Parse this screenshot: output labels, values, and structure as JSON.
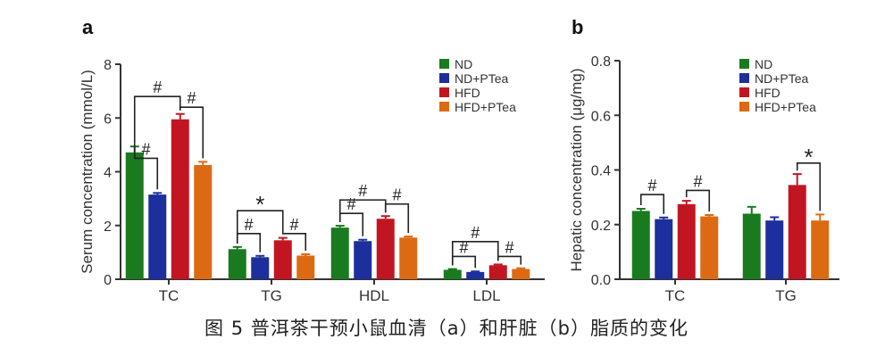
{
  "caption": "图 5  普洱茶干预小鼠血清（a）和肝脏（b）脂质的变化",
  "colors": {
    "ND": "#1a7a1f",
    "ND+PTea": "#1c2f9c",
    "HFD": "#c11622",
    "HFD+PTea": "#dc6a12"
  },
  "chart_data": [
    {
      "panel_label": "a",
      "type": "bar",
      "ylabel": "Serum concentration (mmol/L)",
      "ylim": [
        0,
        8
      ],
      "yticks": [
        "0",
        "2",
        "4",
        "6",
        "8"
      ],
      "categories": [
        "TC",
        "TG",
        "HDL",
        "LDL"
      ],
      "legend": [
        "ND",
        "ND+PTea",
        "HFD",
        "HFD+PTea"
      ],
      "series": [
        {
          "name": "ND",
          "values": [
            4.72,
            1.12,
            1.92,
            0.35
          ],
          "errors": [
            0.22,
            0.08,
            0.07,
            0.03
          ]
        },
        {
          "name": "ND+PTea",
          "values": [
            3.15,
            0.82,
            1.42,
            0.27
          ],
          "errors": [
            0.06,
            0.05,
            0.05,
            0.02
          ]
        },
        {
          "name": "HFD",
          "values": [
            5.95,
            1.45,
            2.25,
            0.52
          ],
          "errors": [
            0.2,
            0.09,
            0.1,
            0.03
          ]
        },
        {
          "name": "HFD+PTea",
          "values": [
            4.25,
            0.88,
            1.55,
            0.38
          ],
          "errors": [
            0.12,
            0.05,
            0.04,
            0.03
          ]
        }
      ],
      "annotations": [
        {
          "category": 0,
          "from": 0,
          "to": 1,
          "level": 4.5,
          "symbol": "#"
        },
        {
          "category": 0,
          "from": 0,
          "to": 2,
          "level": 6.8,
          "symbol": "#"
        },
        {
          "category": 0,
          "from": 2,
          "to": 3,
          "level": 6.4,
          "symbol": "#"
        },
        {
          "category": 1,
          "from": 0,
          "to": 1,
          "level": 1.7,
          "symbol": "#"
        },
        {
          "category": 1,
          "from": 0,
          "to": 2,
          "level": 2.55,
          "symbol": "*"
        },
        {
          "category": 1,
          "from": 2,
          "to": 3,
          "level": 1.7,
          "symbol": "#"
        },
        {
          "category": 2,
          "from": 0,
          "to": 1,
          "level": 2.45,
          "symbol": "#"
        },
        {
          "category": 2,
          "from": 0,
          "to": 2,
          "level": 2.95,
          "symbol": "#"
        },
        {
          "category": 2,
          "from": 2,
          "to": 3,
          "level": 2.8,
          "symbol": "#"
        },
        {
          "category": 3,
          "from": 0,
          "to": 1,
          "level": 0.85,
          "symbol": "#"
        },
        {
          "category": 3,
          "from": 0,
          "to": 2,
          "level": 1.4,
          "symbol": "#"
        },
        {
          "category": 3,
          "from": 2,
          "to": 3,
          "level": 0.85,
          "symbol": "#"
        }
      ]
    },
    {
      "panel_label": "b",
      "type": "bar",
      "ylabel": "Hepatic concentration (μg/mg)",
      "ylim": [
        0,
        0.8
      ],
      "yticks": [
        "0.0",
        "0.2",
        "0.4",
        "0.6",
        "0.8"
      ],
      "categories": [
        "TC",
        "TG"
      ],
      "legend": [
        "ND",
        "ND+PTea",
        "HFD",
        "HFD+PTea"
      ],
      "series": [
        {
          "name": "ND",
          "values": [
            0.25,
            0.24
          ],
          "errors": [
            0.008,
            0.025
          ]
        },
        {
          "name": "ND+PTea",
          "values": [
            0.22,
            0.215
          ],
          "errors": [
            0.006,
            0.012
          ]
        },
        {
          "name": "HFD",
          "values": [
            0.275,
            0.345
          ],
          "errors": [
            0.012,
            0.04
          ]
        },
        {
          "name": "HFD+PTea",
          "values": [
            0.23,
            0.215
          ],
          "errors": [
            0.005,
            0.022
          ]
        }
      ],
      "annotations": [
        {
          "category": 0,
          "from": 0,
          "to": 1,
          "level": 0.31,
          "symbol": "#"
        },
        {
          "category": 0,
          "from": 2,
          "to": 3,
          "level": 0.325,
          "symbol": "#"
        },
        {
          "category": 1,
          "from": 2,
          "to": 3,
          "level": 0.425,
          "symbol": "*"
        }
      ]
    }
  ]
}
